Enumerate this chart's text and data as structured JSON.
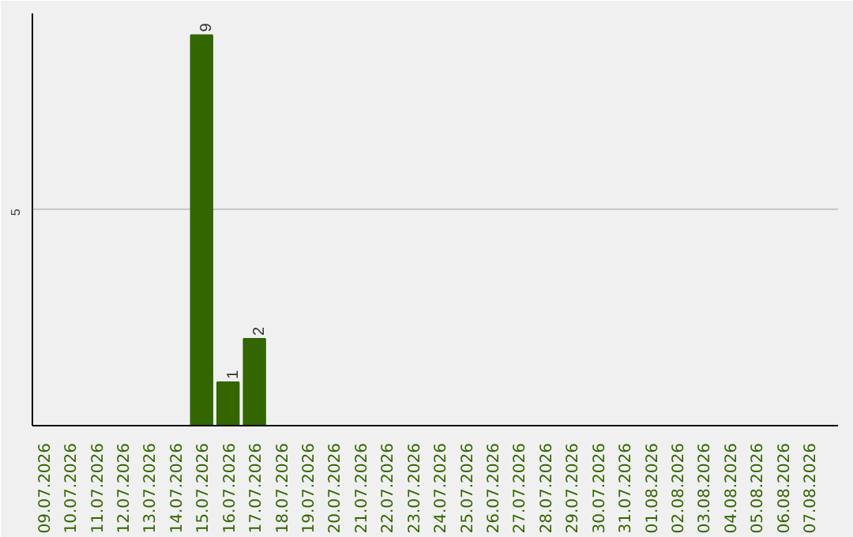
{
  "chart_data": {
    "type": "bar",
    "categories": [
      "09.07.2026",
      "10.07.2026",
      "11.07.2026",
      "12.07.2026",
      "13.07.2026",
      "14.07.2026",
      "15.07.2026",
      "16.07.2026",
      "17.07.2026",
      "18.07.2026",
      "19.07.2026",
      "20.07.2026",
      "21.07.2026",
      "22.07.2026",
      "23.07.2026",
      "24.07.2026",
      "25.07.2026",
      "26.07.2026",
      "27.07.2026",
      "28.07.2026",
      "29.07.2026",
      "30.07.2026",
      "31.07.2026",
      "01.08.2026",
      "02.08.2026",
      "03.08.2026",
      "04.08.2026",
      "05.08.2026",
      "06.08.2026",
      "07.08.2026"
    ],
    "values": [
      0,
      0,
      0,
      0,
      0,
      0,
      9,
      1,
      2,
      0,
      0,
      0,
      0,
      0,
      0,
      0,
      0,
      0,
      0,
      0,
      0,
      0,
      0,
      0,
      0,
      0,
      0,
      0,
      0,
      0
    ],
    "color": "#336600",
    "value_labels": [
      null,
      null,
      null,
      null,
      null,
      null,
      "9",
      "1",
      "2",
      null,
      null,
      null,
      null,
      null,
      null,
      null,
      null,
      null,
      null,
      null,
      null,
      null,
      null,
      null,
      null,
      null,
      null,
      null,
      null,
      null
    ],
    "ylim": [
      0,
      9.5
    ],
    "yticks": [
      5
    ],
    "grid": "y"
  }
}
